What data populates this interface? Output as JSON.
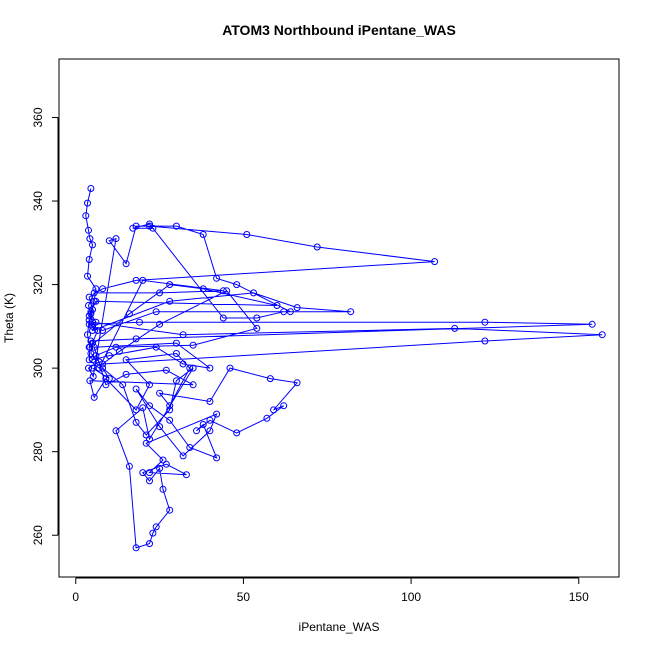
{
  "chart_data": {
    "type": "line",
    "title": "ATOM3 Northbound iPentane_WAS",
    "xlabel": "iPentane_WAS",
    "ylabel": "Theta (K)",
    "xlim": [
      -5,
      162
    ],
    "ylim": [
      250,
      374
    ],
    "xticks": [
      0,
      50,
      100,
      150
    ],
    "xtick_labels": [
      "0",
      "50",
      "100",
      "150"
    ],
    "yticks": [
      260,
      280,
      300,
      320,
      340,
      360
    ],
    "ytick_labels": [
      "260",
      "280",
      "300",
      "320",
      "340",
      "360"
    ],
    "grid": false,
    "legend": "none",
    "series_color": "#0000ff",
    "series": [
      {
        "name": "iPentane_WAS",
        "x": [
          4.5,
          3.5,
          3.0,
          3.8,
          4.2,
          5.0,
          4.0,
          3.5,
          6.0,
          5.5,
          4.0,
          6.5,
          5.0,
          4.5,
          7.0,
          3.8,
          5.2,
          12.0,
          10.0,
          15.0,
          18.0,
          30.0,
          38.0,
          42.0,
          48.0,
          64.0,
          62.0,
          54.0,
          44.0,
          22.0,
          17.0,
          23.0,
          22.0,
          51.0,
          72.0,
          107.0,
          18.0,
          8.0,
          4.0,
          5.0,
          4.0,
          3.5,
          4.2,
          4.0,
          7.0,
          20.0,
          44.0,
          25.0,
          5.5,
          3.8,
          4.5,
          6.0,
          5.0,
          28.0,
          53.0,
          66.0,
          82.0,
          24.0,
          8.0,
          5.0,
          4.0,
          19.0,
          122.0,
          154.0,
          18.0,
          4.5,
          4.0,
          16.0,
          28.0,
          38.0,
          60.0,
          6.0,
          4.5,
          5.0,
          32.0,
          113.0,
          157.0,
          122.0,
          8.0,
          13.0,
          25.0,
          45.0,
          54.0,
          35.0,
          12.0,
          6.0,
          5.0,
          10.0,
          24.0,
          32.0,
          40.0,
          30.0,
          5.5,
          9.0,
          15.0,
          27.0,
          35.0,
          4.2,
          5.5,
          9.0,
          18.0,
          22.0,
          15.0,
          30.0,
          34.0,
          28.0,
          25.0,
          40.0,
          46.0,
          58.0,
          66.0,
          59.0,
          62.0,
          57.0,
          48.0,
          40.0,
          36.0,
          38.0,
          42.0,
          34.0,
          28.0,
          22.0,
          18.0,
          25.0,
          32.0,
          40.0,
          42.0,
          21.0,
          26.0,
          22.0,
          33.0,
          27.0,
          20.0,
          22.0,
          25.0,
          26.0,
          28.0,
          24.0,
          23.0,
          22.0,
          18.0,
          16.0,
          12.0,
          20.0,
          22.0,
          35.0,
          30.0,
          28.0,
          21.0,
          18.0,
          14.0,
          8.0,
          10.0,
          5.0
        ],
        "y": [
          343.0,
          339.5,
          336.5,
          333.0,
          331.0,
          329.5,
          326.0,
          322.0,
          319.0,
          316.0,
          312.5,
          309.0,
          306.0,
          303.5,
          301.5,
          300.0,
          298.0,
          331.0,
          330.5,
          325.0,
          334.0,
          334.0,
          332.0,
          321.5,
          320.0,
          313.5,
          313.5,
          312.0,
          312.0,
          334.5,
          333.5,
          333.5,
          334.0,
          332.0,
          329.0,
          325.5,
          321.0,
          319.0,
          317.0,
          314.0,
          311.5,
          308.0,
          305.0,
          302.0,
          300.0,
          321.0,
          318.5,
          318.0,
          318.0,
          315.0,
          313.0,
          311.0,
          309.0,
          316.0,
          318.0,
          314.5,
          313.5,
          313.5,
          309.0,
          310.0,
          310.5,
          311.0,
          311.0,
          310.5,
          307.0,
          306.5,
          305.0,
          313.0,
          320.0,
          319.0,
          315.0,
          316.0,
          313.5,
          311.0,
          308.0,
          309.5,
          308.0,
          306.5,
          301.0,
          304.0,
          310.5,
          318.5,
          309.5,
          305.5,
          305.0,
          303.0,
          302.0,
          303.0,
          305.0,
          301.0,
          300.0,
          306.0,
          305.0,
          296.0,
          298.5,
          299.5,
          296.0,
          297.0,
          293.0,
          297.5,
          290.0,
          296.0,
          302.0,
          303.5,
          300.0,
          291.0,
          294.0,
          292.0,
          300.0,
          297.5,
          296.5,
          290.0,
          291.0,
          288.0,
          284.5,
          287.5,
          285.0,
          286.5,
          278.5,
          281.0,
          287.5,
          291.0,
          295.0,
          286.0,
          279.0,
          285.0,
          289.0,
          282.0,
          278.0,
          275.0,
          274.5,
          277.0,
          275.0,
          273.0,
          276.0,
          271.0,
          266.0,
          262.0,
          260.5,
          258.0,
          257.0,
          276.5,
          285.0,
          290.5,
          283.0,
          300.0,
          297.0,
          290.0,
          284.0,
          287.0,
          296.0,
          300.0,
          297.5,
          300.0
        ]
      }
    ]
  }
}
